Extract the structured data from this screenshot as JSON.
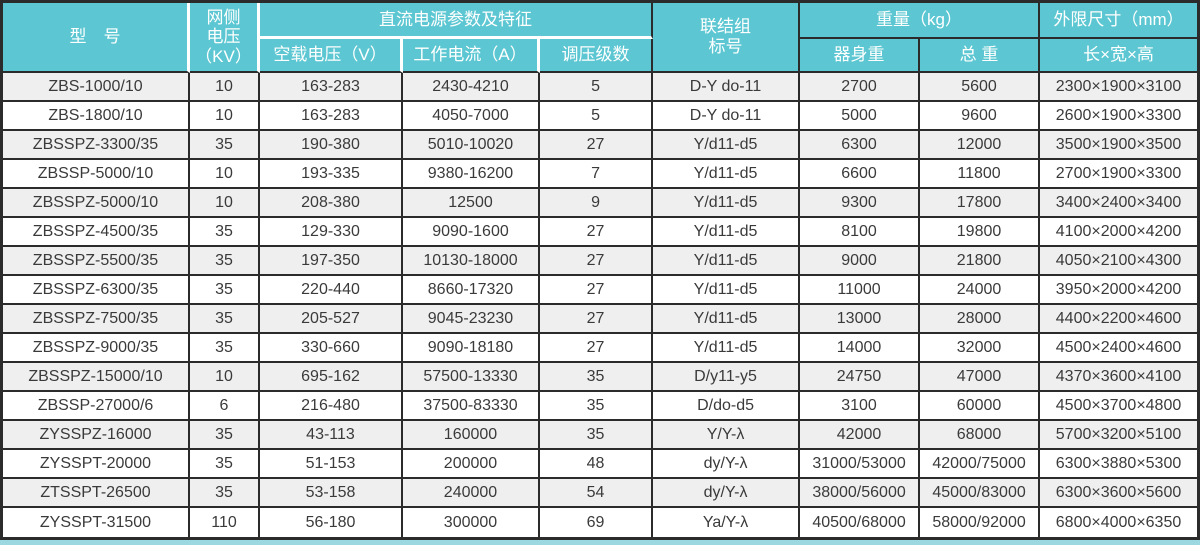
{
  "colors": {
    "header_bg": "#5cc7d2",
    "header_text": "#ffffff",
    "border_dark": "#2b2b2b",
    "separator_white": "#ffffff",
    "row_stripe_gray": "#efefef",
    "row_white": "#ffffff",
    "body_text": "#3a3a3a",
    "bottom_strip_teal": "#9bd8e0"
  },
  "table": {
    "header": {
      "model": "型　号",
      "grid_voltage": "网侧\n电压\n（KV）",
      "dc_params_group": "直流电源参数及特征",
      "no_load_voltage": "空载电压（V）",
      "working_current": "工作电流（A）",
      "regulation_steps": "调压级数",
      "connection_group": "联结组\n标号",
      "weight_group": "重量（kg）",
      "body_weight": "器身重",
      "total_weight": "总  重",
      "dimensions_group": "外限尺寸（mm）",
      "dimensions": "长×宽×高"
    },
    "column_keys": [
      "model",
      "grid-voltage-kv",
      "no-load-voltage-v",
      "working-current-a",
      "regulation-steps",
      "connection-group",
      "body-weight-kg",
      "total-weight-kg",
      "dimensions-mm"
    ],
    "rows": [
      [
        "ZBS-1000/10",
        "10",
        "163-283",
        "2430-4210",
        "5",
        "D-Y do-11",
        "2700",
        "5600",
        "2300×1900×3100"
      ],
      [
        "ZBS-1800/10",
        "10",
        "163-283",
        "4050-7000",
        "5",
        "D-Y do-11",
        "5000",
        "9600",
        "2600×1900×3300"
      ],
      [
        "ZBSSPZ-3300/35",
        "35",
        "190-380",
        "5010-10020",
        "27",
        "Y/d11-d5",
        "6300",
        "12000",
        "3500×1900×3500"
      ],
      [
        "ZBSSP-5000/10",
        "10",
        "193-335",
        "9380-16200",
        "7",
        "Y/d11-d5",
        "6600",
        "11800",
        "2700×1900×3300"
      ],
      [
        "ZBSSPZ-5000/10",
        "10",
        "208-380",
        "12500",
        "9",
        "Y/d11-d5",
        "9300",
        "17800",
        "3400×2400×3400"
      ],
      [
        "ZBSSPZ-4500/35",
        "35",
        "129-330",
        "9090-1600",
        "27",
        "Y/d11-d5",
        "8100",
        "19800",
        "4100×2000×4200"
      ],
      [
        "ZBSSPZ-5500/35",
        "35",
        "197-350",
        "10130-18000",
        "27",
        "Y/d11-d5",
        "9000",
        "21800",
        "4050×2100×4300"
      ],
      [
        "ZBSSPZ-6300/35",
        "35",
        "220-440",
        "8660-17320",
        "27",
        "Y/d11-d5",
        "11000",
        "24000",
        "3950×2000×4200"
      ],
      [
        "ZBSSPZ-7500/35",
        "35",
        "205-527",
        "9045-23230",
        "27",
        "Y/d11-d5",
        "13000",
        "28000",
        "4400×2200×4600"
      ],
      [
        "ZBSSPZ-9000/35",
        "35",
        "330-660",
        "9090-18180",
        "27",
        "Y/d11-d5",
        "14000",
        "32000",
        "4500×2400×4600"
      ],
      [
        "ZBSSPZ-15000/10",
        "10",
        "695-162",
        "57500-13330",
        "35",
        "D/y11-y5",
        "24750",
        "47000",
        "4370×3600×4100"
      ],
      [
        "ZBSSP-27000/6",
        "6",
        "216-480",
        "37500-83330",
        "35",
        "D/do-d5",
        "3100",
        "60000",
        "4500×3700×4800"
      ],
      [
        "ZYSSPZ-16000",
        "35",
        "43-113",
        "160000",
        "35",
        "Y/Y-λ",
        "42000",
        "68000",
        "5700×3200×5100"
      ],
      [
        "ZYSSPT-20000",
        "35",
        "51-153",
        "200000",
        "48",
        "dy/Y-λ",
        "31000/53000",
        "42000/75000",
        "6300×3880×5300"
      ],
      [
        "ZTSSPT-26500",
        "35",
        "53-158",
        "240000",
        "54",
        "dy/Y-λ",
        "38000/56000",
        "45000/83000",
        "6300×3600×5600"
      ],
      [
        "ZYSSPT-31500",
        "110",
        "56-180",
        "300000",
        "69",
        "Ya/Y-λ",
        "40500/68000",
        "58000/92000",
        "6800×4000×6350"
      ]
    ]
  }
}
